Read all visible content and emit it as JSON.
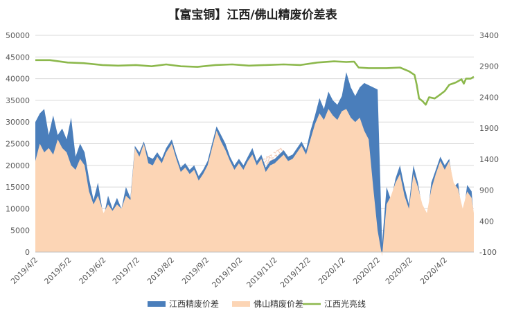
{
  "chart_data": {
    "type": "area",
    "title": "【富宝铜】江西/佛山精废价差表",
    "watermark": "富宝资讯",
    "xlabel": "",
    "ylabel": "",
    "y_left": {
      "ylim": [
        0,
        50000
      ],
      "ticks": [
        0,
        5000,
        10000,
        15000,
        20000,
        25000,
        30000,
        35000,
        40000,
        45000,
        50000
      ]
    },
    "y_right": {
      "ylim": [
        -100,
        3400
      ],
      "ticks": [
        -100,
        400,
        900,
        1400,
        1900,
        2400,
        2900,
        3400
      ]
    },
    "x_axis": {
      "start": "2019-04-02",
      "end": "2020-04-28",
      "tick_labels": [
        "2019/4/2",
        "2019/5/2",
        "2019/6/2",
        "2019/7/2",
        "2019/8/2",
        "2019/9/2",
        "2019/10/2",
        "2019/11/2",
        "2019/12/2",
        "2020/1/2",
        "2020/2/2",
        "2020/3/2",
        "2020/4/2"
      ],
      "label_rotation": -45
    },
    "grid": true,
    "legend_position": "bottom",
    "colors": {
      "jiangxi_spread": "#4a7ebb",
      "foshan_spread": "#fcd5b5",
      "jiangxi_bright_wire": "#8cb84c"
    },
    "series": [
      {
        "name": "江西精废价差",
        "axis": "left",
        "style": "area",
        "points": [
          [
            "2019-04-02",
            30000
          ],
          [
            "2019-04-06",
            32000
          ],
          [
            "2019-04-10",
            33000
          ],
          [
            "2019-04-14",
            27000
          ],
          [
            "2019-04-18",
            31500
          ],
          [
            "2019-04-22",
            27000
          ],
          [
            "2019-04-26",
            28500
          ],
          [
            "2019-04-30",
            26000
          ],
          [
            "2019-05-04",
            31000
          ],
          [
            "2019-05-08",
            22000
          ],
          [
            "2019-05-12",
            25000
          ],
          [
            "2019-05-16",
            23000
          ],
          [
            "2019-05-20",
            17000
          ],
          [
            "2019-05-24",
            12000
          ],
          [
            "2019-05-28",
            16000
          ],
          [
            "2019-06-02",
            8000
          ],
          [
            "2019-06-06",
            13000
          ],
          [
            "2019-06-10",
            10000
          ],
          [
            "2019-06-14",
            12500
          ],
          [
            "2019-06-18",
            10000
          ],
          [
            "2019-06-22",
            15000
          ],
          [
            "2019-06-26",
            12500
          ],
          [
            "2019-06-30",
            24500
          ],
          [
            "2019-07-04",
            23000
          ],
          [
            "2019-07-08",
            25500
          ],
          [
            "2019-07-12",
            22000
          ],
          [
            "2019-07-16",
            21500
          ],
          [
            "2019-07-20",
            23000
          ],
          [
            "2019-07-24",
            21500
          ],
          [
            "2019-07-28",
            24000
          ],
          [
            "2019-08-02",
            26000
          ],
          [
            "2019-08-06",
            22500
          ],
          [
            "2019-08-10",
            19500
          ],
          [
            "2019-08-14",
            20500
          ],
          [
            "2019-08-18",
            19000
          ],
          [
            "2019-08-22",
            20000
          ],
          [
            "2019-08-26",
            17500
          ],
          [
            "2019-08-30",
            19000
          ],
          [
            "2019-09-03",
            21000
          ],
          [
            "2019-09-07",
            25000
          ],
          [
            "2019-09-11",
            29000
          ],
          [
            "2019-09-15",
            27000
          ],
          [
            "2019-09-19",
            25000
          ],
          [
            "2019-09-23",
            22000
          ],
          [
            "2019-09-27",
            20000
          ],
          [
            "2019-10-01",
            21500
          ],
          [
            "2019-10-05",
            20000
          ],
          [
            "2019-10-09",
            22000
          ],
          [
            "2019-10-13",
            24000
          ],
          [
            "2019-10-17",
            21000
          ],
          [
            "2019-10-21",
            22500
          ],
          [
            "2019-10-25",
            19500
          ],
          [
            "2019-10-29",
            21000
          ],
          [
            "2019-11-02",
            21500
          ],
          [
            "2019-11-06",
            22500
          ],
          [
            "2019-11-10",
            23500
          ],
          [
            "2019-11-14",
            22000
          ],
          [
            "2019-11-18",
            22500
          ],
          [
            "2019-11-22",
            24000
          ],
          [
            "2019-11-26",
            25500
          ],
          [
            "2019-11-30",
            23500
          ],
          [
            "2019-12-04",
            28000
          ],
          [
            "2019-12-08",
            31500
          ],
          [
            "2019-12-12",
            35500
          ],
          [
            "2019-12-16",
            33000
          ],
          [
            "2019-12-20",
            37000
          ],
          [
            "2019-12-24",
            35000
          ],
          [
            "2019-12-28",
            34000
          ],
          [
            "2020-01-01",
            36000
          ],
          [
            "2020-01-05",
            41500
          ],
          [
            "2020-01-09",
            38000
          ],
          [
            "2020-01-13",
            36000
          ],
          [
            "2020-01-17",
            38000
          ],
          [
            "2020-01-21",
            39000
          ],
          [
            "2020-01-25",
            38500
          ],
          [
            "2020-01-29",
            38000
          ],
          [
            "2020-02-02",
            37500
          ],
          [
            "2020-02-06",
            2000
          ],
          [
            "2020-02-10",
            15000
          ],
          [
            "2020-02-14",
            12000
          ],
          [
            "2020-02-18",
            17000
          ],
          [
            "2020-02-22",
            20000
          ],
          [
            "2020-02-26",
            15000
          ],
          [
            "2020-03-01",
            11000
          ],
          [
            "2020-03-05",
            20000
          ],
          [
            "2020-03-09",
            16000
          ],
          [
            "2020-03-13",
            10000
          ],
          [
            "2020-03-17",
            7000
          ],
          [
            "2020-03-21",
            16000
          ],
          [
            "2020-03-25",
            19000
          ],
          [
            "2020-03-29",
            22000
          ],
          [
            "2020-04-02",
            20000
          ],
          [
            "2020-04-06",
            21500
          ],
          [
            "2020-04-10",
            15000
          ],
          [
            "2020-04-14",
            16000
          ],
          [
            "2020-04-18",
            7000
          ],
          [
            "2020-04-22",
            15500
          ],
          [
            "2020-04-26",
            14000
          ],
          [
            "2020-04-28",
            8000
          ]
        ]
      },
      {
        "name": "佛山精废价差",
        "axis": "left",
        "style": "area",
        "points": [
          [
            "2019-04-02",
            21000
          ],
          [
            "2019-04-06",
            25000
          ],
          [
            "2019-04-10",
            23000
          ],
          [
            "2019-04-14",
            24000
          ],
          [
            "2019-04-18",
            22500
          ],
          [
            "2019-04-22",
            26000
          ],
          [
            "2019-04-26",
            24000
          ],
          [
            "2019-04-30",
            23000
          ],
          [
            "2019-05-04",
            20000
          ],
          [
            "2019-05-08",
            19000
          ],
          [
            "2019-05-12",
            21500
          ],
          [
            "2019-05-16",
            20000
          ],
          [
            "2019-05-20",
            14000
          ],
          [
            "2019-05-24",
            11000
          ],
          [
            "2019-05-28",
            13000
          ],
          [
            "2019-06-02",
            9000
          ],
          [
            "2019-06-06",
            11000
          ],
          [
            "2019-06-10",
            9500
          ],
          [
            "2019-06-14",
            11000
          ],
          [
            "2019-06-18",
            10000
          ],
          [
            "2019-06-22",
            13000
          ],
          [
            "2019-06-26",
            12000
          ],
          [
            "2019-06-30",
            24000
          ],
          [
            "2019-07-04",
            22000
          ],
          [
            "2019-07-08",
            25000
          ],
          [
            "2019-07-12",
            20500
          ],
          [
            "2019-07-16",
            20000
          ],
          [
            "2019-07-20",
            22000
          ],
          [
            "2019-07-24",
            20500
          ],
          [
            "2019-07-28",
            23000
          ],
          [
            "2019-08-02",
            25000
          ],
          [
            "2019-08-06",
            21500
          ],
          [
            "2019-08-10",
            18500
          ],
          [
            "2019-08-14",
            19500
          ],
          [
            "2019-08-18",
            18000
          ],
          [
            "2019-08-22",
            19000
          ],
          [
            "2019-08-26",
            16500
          ],
          [
            "2019-08-30",
            18000
          ],
          [
            "2019-09-03",
            20000
          ],
          [
            "2019-09-07",
            24000
          ],
          [
            "2019-09-11",
            28000
          ],
          [
            "2019-09-15",
            25500
          ],
          [
            "2019-09-19",
            23500
          ],
          [
            "2019-09-23",
            21000
          ],
          [
            "2019-09-27",
            19000
          ],
          [
            "2019-10-01",
            20500
          ],
          [
            "2019-10-05",
            19000
          ],
          [
            "2019-10-09",
            21000
          ],
          [
            "2019-10-13",
            22500
          ],
          [
            "2019-10-17",
            20000
          ],
          [
            "2019-10-21",
            21500
          ],
          [
            "2019-10-25",
            18500
          ],
          [
            "2019-10-29",
            20000
          ],
          [
            "2019-11-02",
            20500
          ],
          [
            "2019-11-06",
            21500
          ],
          [
            "2019-11-10",
            22500
          ],
          [
            "2019-11-14",
            21000
          ],
          [
            "2019-11-18",
            21500
          ],
          [
            "2019-11-22",
            23000
          ],
          [
            "2019-11-26",
            24500
          ],
          [
            "2019-11-30",
            22500
          ],
          [
            "2019-12-04",
            26000
          ],
          [
            "2019-12-08",
            29500
          ],
          [
            "2019-12-12",
            32000
          ],
          [
            "2019-12-16",
            30500
          ],
          [
            "2019-12-20",
            33000
          ],
          [
            "2019-12-24",
            31500
          ],
          [
            "2019-12-28",
            30500
          ],
          [
            "2020-01-01",
            32500
          ],
          [
            "2020-01-05",
            33000
          ],
          [
            "2020-01-09",
            31000
          ],
          [
            "2020-01-13",
            30000
          ],
          [
            "2020-01-17",
            31000
          ],
          [
            "2020-01-21",
            28000
          ],
          [
            "2020-01-25",
            26000
          ],
          [
            "2020-01-29",
            15000
          ],
          [
            "2020-02-02",
            5000
          ],
          [
            "2020-02-06",
            -1000
          ],
          [
            "2020-02-10",
            11000
          ],
          [
            "2020-02-14",
            13000
          ],
          [
            "2020-02-18",
            16000
          ],
          [
            "2020-02-22",
            18000
          ],
          [
            "2020-02-26",
            13000
          ],
          [
            "2020-03-01",
            10000
          ],
          [
            "2020-03-05",
            18000
          ],
          [
            "2020-03-09",
            15000
          ],
          [
            "2020-03-13",
            11000
          ],
          [
            "2020-03-17",
            9000
          ],
          [
            "2020-03-21",
            14500
          ],
          [
            "2020-03-25",
            18000
          ],
          [
            "2020-03-29",
            21000
          ],
          [
            "2020-04-02",
            19000
          ],
          [
            "2020-04-06",
            21000
          ],
          [
            "2020-04-10",
            16000
          ],
          [
            "2020-04-14",
            14500
          ],
          [
            "2020-04-18",
            10000
          ],
          [
            "2020-04-22",
            14000
          ],
          [
            "2020-04-26",
            12500
          ],
          [
            "2020-04-28",
            9000
          ]
        ]
      },
      {
        "name": "江西光亮线",
        "axis": "right",
        "style": "line",
        "points": [
          [
            "2019-04-02",
            3000
          ],
          [
            "2019-04-15",
            3000
          ],
          [
            "2019-05-01",
            2960
          ],
          [
            "2019-05-15",
            2950
          ],
          [
            "2019-06-01",
            2920
          ],
          [
            "2019-06-15",
            2910
          ],
          [
            "2019-07-01",
            2920
          ],
          [
            "2019-07-15",
            2900
          ],
          [
            "2019-07-28",
            2930
          ],
          [
            "2019-08-10",
            2900
          ],
          [
            "2019-08-25",
            2890
          ],
          [
            "2019-09-10",
            2920
          ],
          [
            "2019-09-25",
            2930
          ],
          [
            "2019-10-10",
            2910
          ],
          [
            "2019-10-25",
            2920
          ],
          [
            "2019-11-10",
            2930
          ],
          [
            "2019-11-25",
            2920
          ],
          [
            "2019-12-10",
            2960
          ],
          [
            "2019-12-25",
            2980
          ],
          [
            "2020-01-05",
            2970
          ],
          [
            "2020-01-12",
            2975
          ],
          [
            "2020-01-16",
            2880
          ],
          [
            "2020-01-25",
            2870
          ],
          [
            "2020-02-10",
            2870
          ],
          [
            "2020-02-22",
            2880
          ],
          [
            "2020-03-01",
            2820
          ],
          [
            "2020-03-06",
            2760
          ],
          [
            "2020-03-08",
            2600
          ],
          [
            "2020-03-10",
            2380
          ],
          [
            "2020-03-13",
            2340
          ],
          [
            "2020-03-16",
            2280
          ],
          [
            "2020-03-19",
            2400
          ],
          [
            "2020-03-24",
            2380
          ],
          [
            "2020-03-28",
            2430
          ],
          [
            "2020-04-02",
            2500
          ],
          [
            "2020-04-06",
            2600
          ],
          [
            "2020-04-12",
            2640
          ],
          [
            "2020-04-17",
            2690
          ],
          [
            "2020-04-19",
            2620
          ],
          [
            "2020-04-21",
            2700
          ],
          [
            "2020-04-25",
            2700
          ],
          [
            "2020-04-28",
            2730
          ]
        ]
      }
    ]
  }
}
